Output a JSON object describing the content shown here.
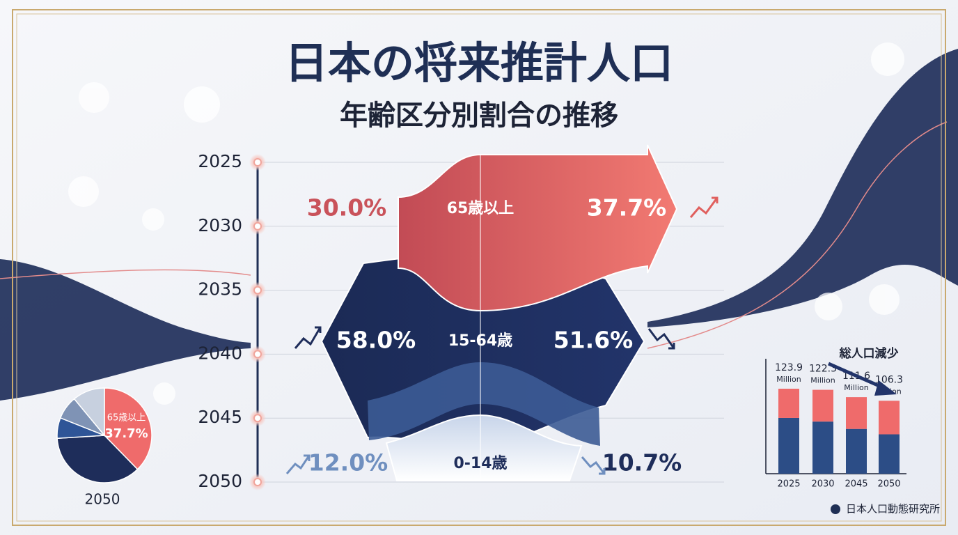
{
  "header": {
    "title": "日本の将来推計人口",
    "subtitle": "年齢区分別割合の推移"
  },
  "source": "日本人口動態研究所",
  "chart_data": [
    {
      "type": "flow",
      "ylim": [
        2025,
        2050
      ],
      "yticks": [
        2025,
        2030,
        2035,
        2040,
        2045,
        2050
      ],
      "grid": true,
      "series": [
        {
          "name": "65歳以上",
          "color": "#c9525a",
          "values": [
            30.0,
            37.7
          ],
          "value_labels": [
            "30.0%",
            "37.7%"
          ]
        },
        {
          "name": "15-64歳",
          "color": "#1e2d5a",
          "values": [
            58.0,
            51.6
          ],
          "value_labels": [
            "58.0%",
            "51.6%"
          ]
        },
        {
          "name": "0-14歳",
          "color": "#6f8fbf",
          "values": [
            12.0,
            10.7
          ],
          "value_labels": [
            "12.0%",
            "10.7%"
          ]
        }
      ]
    },
    {
      "type": "pie",
      "title": "2050",
      "categories": [
        "65歳以上",
        null,
        null,
        null,
        null
      ],
      "values": [
        37.7,
        36.3,
        7,
        8,
        11
      ],
      "value_labels": [
        "37.7%",
        null,
        null,
        null,
        null
      ],
      "colors": [
        "#ef6b6b",
        "#1e2d5a",
        "#2f5597",
        "#7f93b5",
        "#c7d0df"
      ]
    },
    {
      "type": "stacked-bar",
      "annotation": "総人口減少",
      "categories": [
        "2025",
        "2030",
        "2045",
        "2050"
      ],
      "ylim": [
        0,
        130
      ],
      "series": [
        {
          "color": "#2c4d86",
          "values": [
            81.3,
            76.0,
            65.3,
            57.4
          ]
        },
        {
          "color": "#ef6b6b",
          "values": [
            42.6,
            46.3,
            46.3,
            48.9
          ]
        }
      ],
      "totals": [
        123.9,
        122.3,
        111.6,
        106.3
      ],
      "total_unit": "Million"
    }
  ]
}
